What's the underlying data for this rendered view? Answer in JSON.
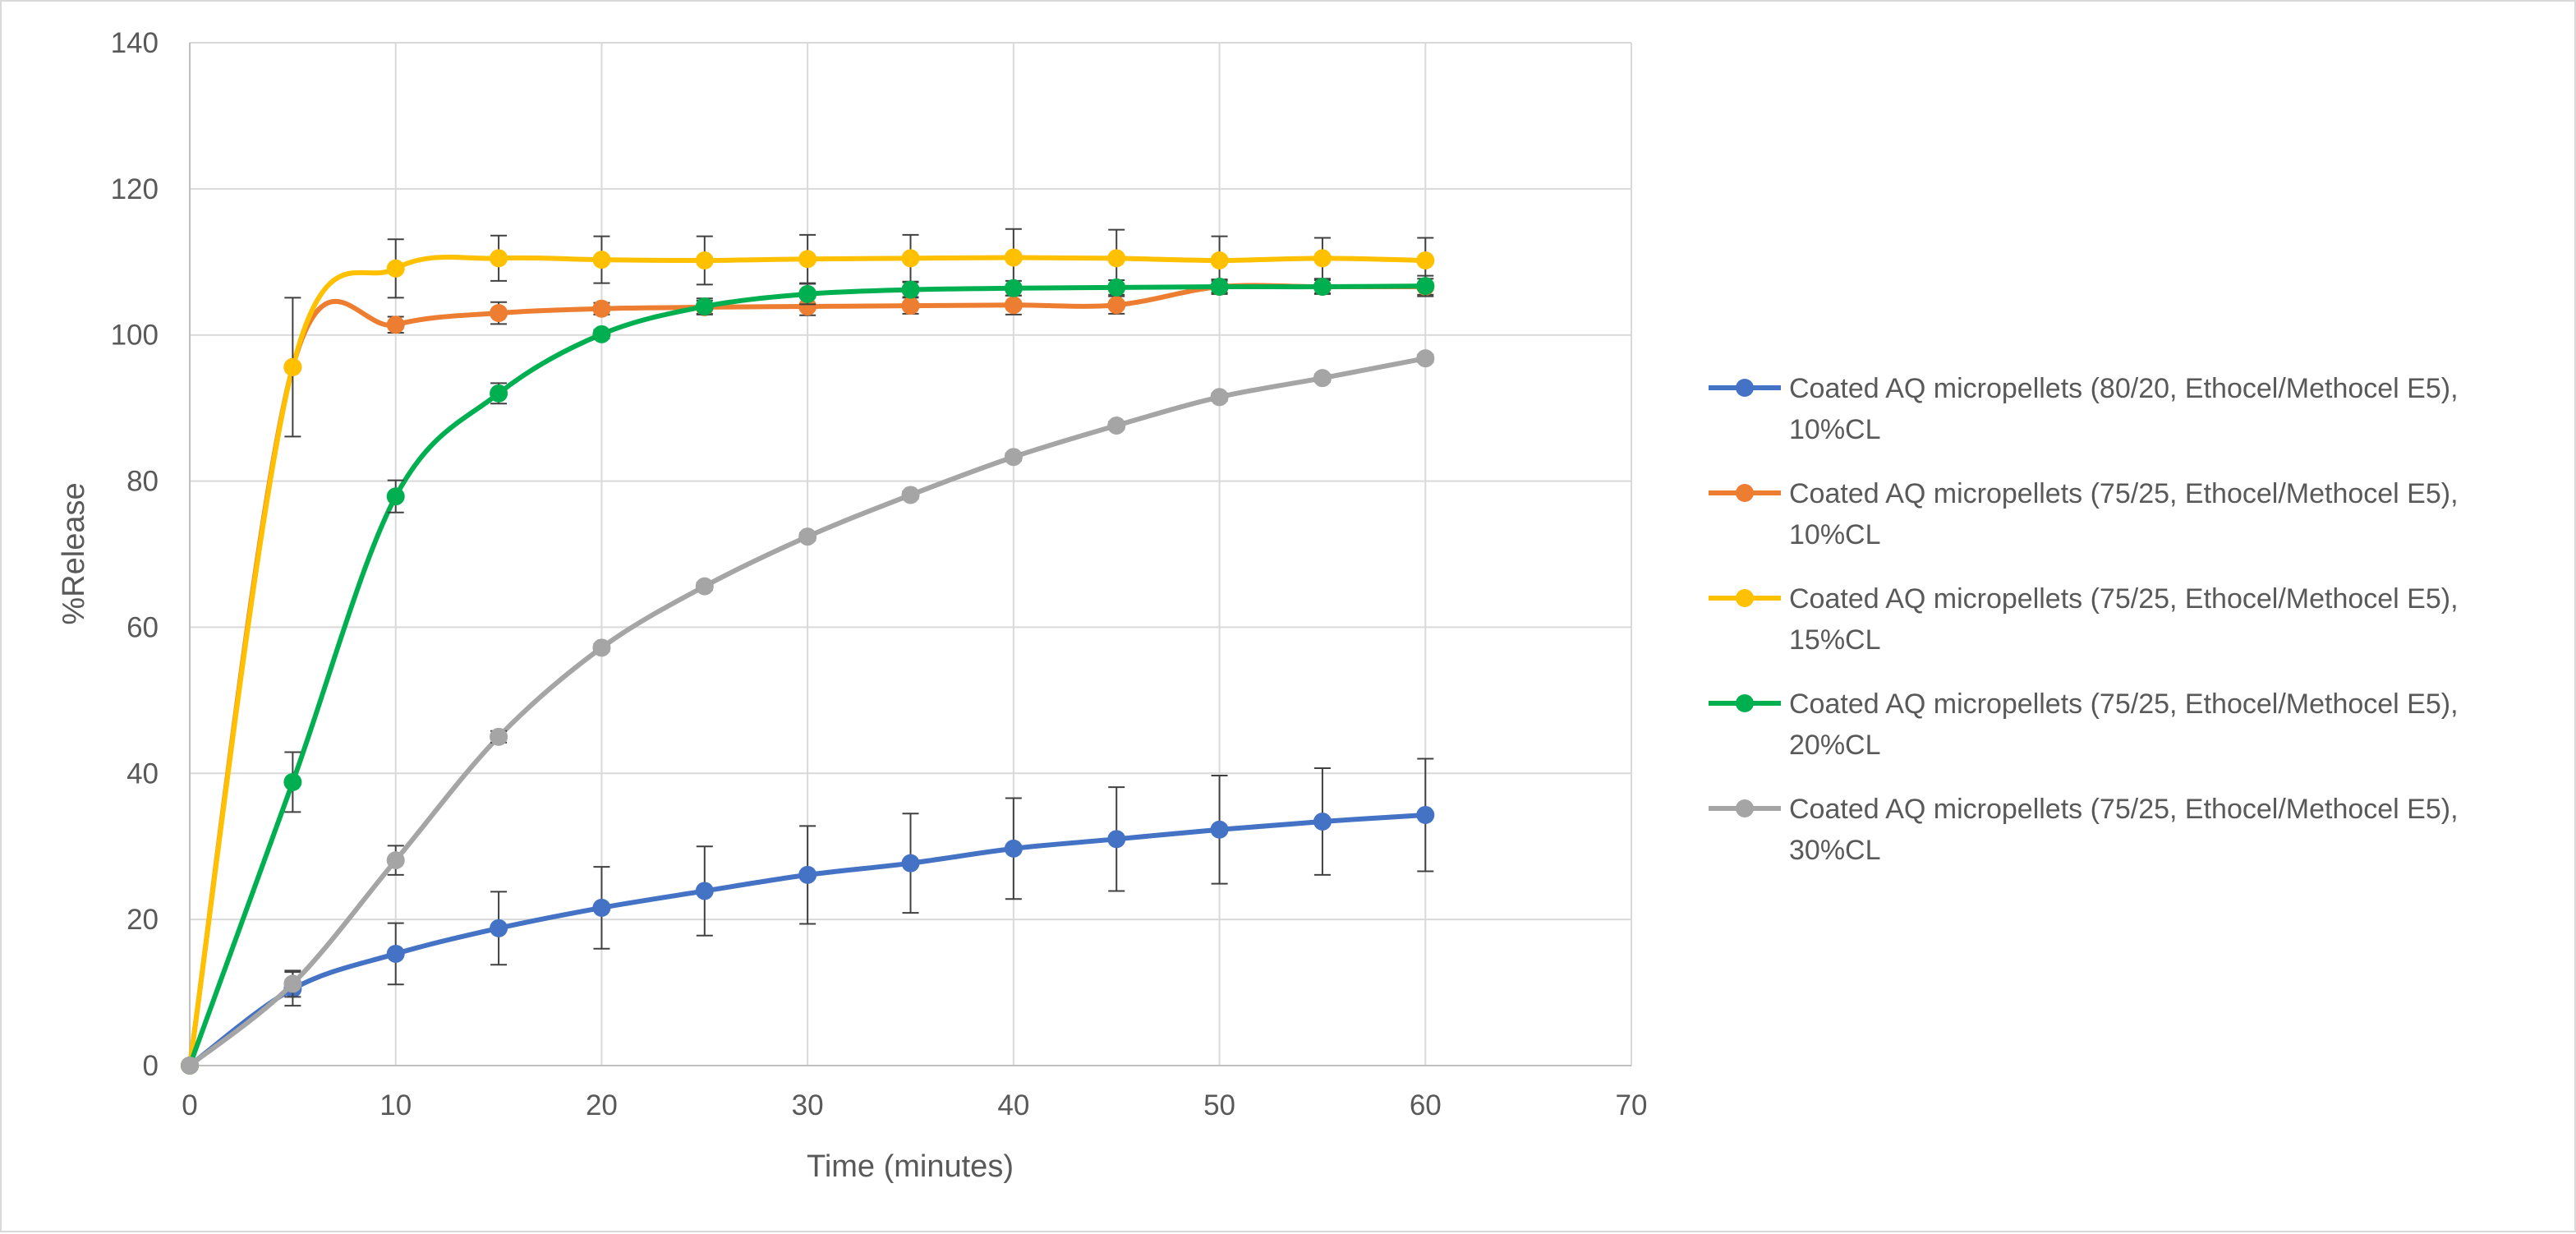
{
  "chart_data": {
    "type": "line",
    "title": "",
    "xlabel": "Time (minutes)",
    "ylabel": "%Release",
    "xlim": [
      0,
      70
    ],
    "ylim": [
      0,
      140
    ],
    "xticks": [
      0,
      10,
      20,
      30,
      40,
      50,
      60,
      70
    ],
    "yticks": [
      0,
      20,
      40,
      60,
      80,
      100,
      120,
      140
    ],
    "grid": true,
    "legend_position": "right",
    "smoothed": true,
    "error_bars": true,
    "x": [
      0,
      5,
      10,
      15,
      20,
      25,
      30,
      35,
      40,
      45,
      50,
      55,
      60
    ],
    "series": [
      {
        "name": [
          "Coated AQ micropellets (80/20, Ethocel/Methocel E5),",
          "10%CL"
        ],
        "color": "#4472c4",
        "values": [
          0,
          10.5,
          15.3,
          18.8,
          21.6,
          23.9,
          26.1,
          27.7,
          29.7,
          31.0,
          32.3,
          33.4,
          34.3
        ],
        "errors": [
          0,
          2.3,
          4.2,
          5.0,
          5.6,
          6.1,
          6.7,
          6.8,
          6.9,
          7.1,
          7.4,
          7.3,
          7.7
        ]
      },
      {
        "name": [
          "Coated AQ micropellets (75/25, Ethocel/Methocel E5),",
          "10%CL"
        ],
        "color": "#ed7d31",
        "values": [
          0,
          95.6,
          101.4,
          103.0,
          103.6,
          103.8,
          103.9,
          104.0,
          104.1,
          104.1,
          106.6,
          106.6,
          106.6
        ],
        "errors": [
          0,
          0,
          1.1,
          1.5,
          0.8,
          0.9,
          1.2,
          1.1,
          1.3,
          1.2,
          0.8,
          0.9,
          1.1
        ]
      },
      {
        "name": [
          "Coated AQ micropellets (75/25, Ethocel/Methocel E5),",
          "15%CL"
        ],
        "color": "#ffc000",
        "values": [
          0,
          95.6,
          109.1,
          110.5,
          110.3,
          110.2,
          110.4,
          110.5,
          110.6,
          110.5,
          110.2,
          110.5,
          110.2
        ],
        "errors": [
          0,
          9.5,
          4.0,
          3.1,
          3.2,
          3.3,
          3.3,
          3.2,
          3.9,
          3.9,
          3.3,
          2.8,
          3.1
        ]
      },
      {
        "name": [
          "Coated AQ micropellets (75/25, Ethocel/Methocel E5),",
          "20%CL"
        ],
        "color": "#00b050",
        "values": [
          0,
          38.8,
          77.9,
          92.0,
          100.1,
          103.9,
          105.6,
          106.2,
          106.4,
          106.5,
          106.6,
          106.6,
          106.7
        ],
        "errors": [
          0,
          4.1,
          2.2,
          1.4,
          0.6,
          1.1,
          1.4,
          1.0,
          1.0,
          1.0,
          1.0,
          1.0,
          1.4
        ]
      },
      {
        "name": [
          "Coated AQ micropellets (75/25, Ethocel/Methocel E5),",
          "30%CL"
        ],
        "color": "#a5a5a5",
        "values": [
          0,
          11.2,
          28.1,
          45.0,
          57.2,
          65.6,
          72.4,
          78.1,
          83.3,
          87.6,
          91.5,
          94.1,
          96.8
        ],
        "errors": [
          0,
          1.8,
          2.0,
          0.8,
          0.5,
          0.5,
          0.5,
          0.5,
          0.5,
          0.5,
          0.5,
          0.5,
          0.5
        ]
      }
    ]
  }
}
